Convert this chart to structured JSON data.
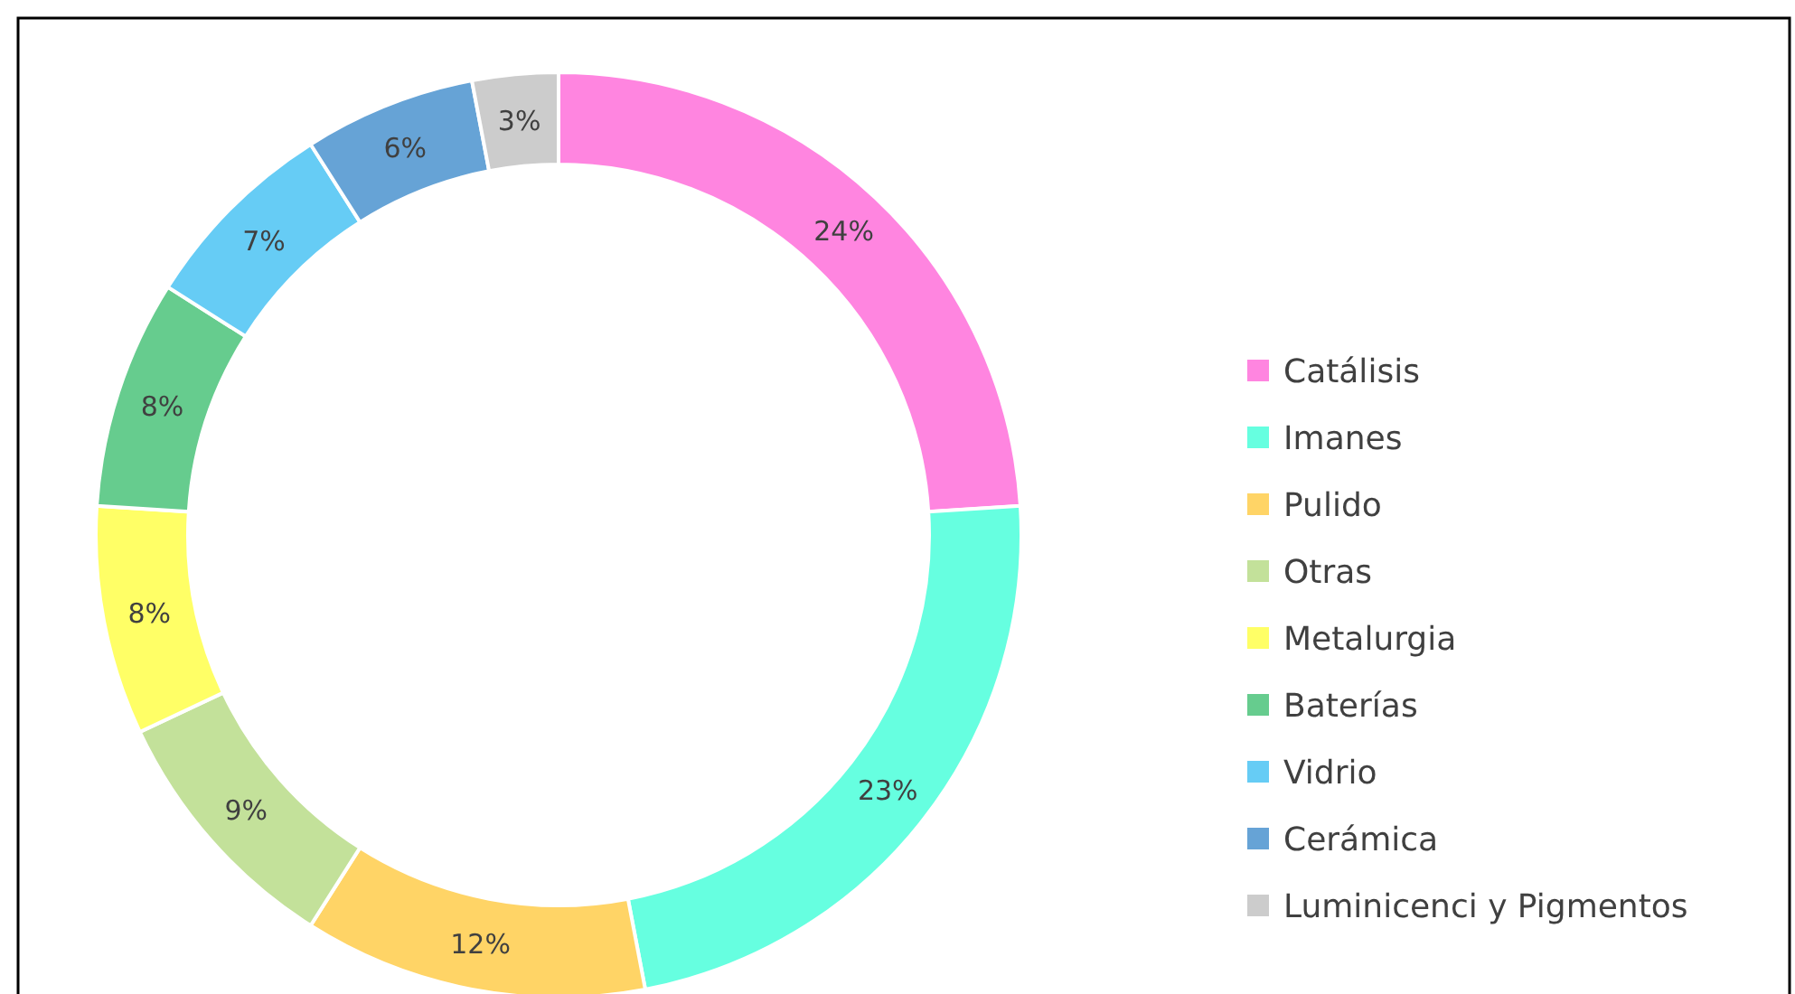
{
  "chart_data": {
    "type": "donut",
    "categories": [
      "Catálisis",
      "Imanes",
      "Pulido",
      "Otras",
      "Metalurgia",
      "Baterías",
      "Vidrio",
      "Cerámica",
      "Luminicenci y Pigmentos"
    ],
    "values": [
      24,
      23,
      12,
      9,
      8,
      8,
      7,
      6,
      3
    ],
    "colors": [
      "#ff85e0",
      "#66ffe0",
      "#ffd466",
      "#c3e19a",
      "#ffff66",
      "#66cc8e",
      "#66ccf5",
      "#66a3d6",
      "#cccccc"
    ],
    "value_labels": [
      "24%",
      "23%",
      "12%",
      "9%",
      "8%",
      "8%",
      "7%",
      "6%",
      "3%"
    ],
    "legend": "right"
  }
}
